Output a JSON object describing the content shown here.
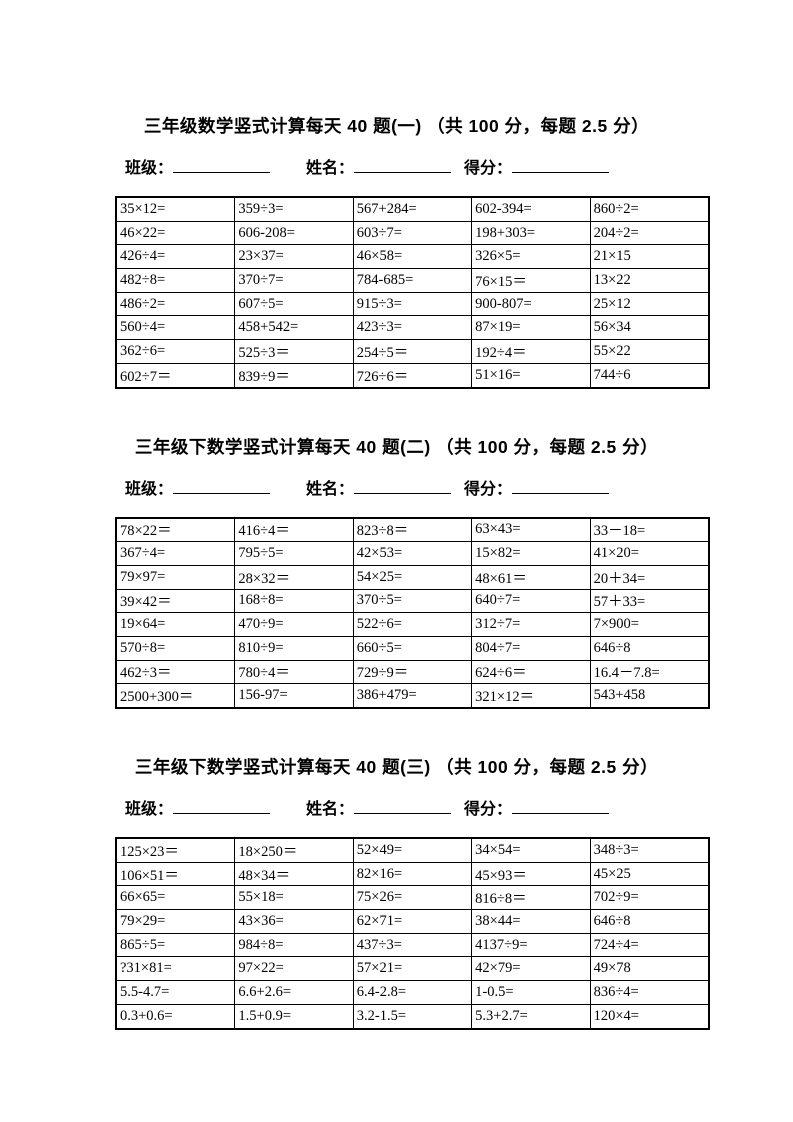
{
  "worksheets": [
    {
      "title": "三年级数学竖式计算每天 40 题(一) （共 100 分，每题 2.5 分）",
      "fields": {
        "class_label": "班级：",
        "name_label": "姓名：",
        "score_label": "得分："
      },
      "problems": [
        [
          "35×12=",
          "359÷3=",
          "567+284=",
          "602-394=",
          "860÷2="
        ],
        [
          "46×22=",
          "606-208=",
          "603÷7=",
          "198+303=",
          "204÷2="
        ],
        [
          "426÷4=",
          "23×37=",
          "46×58=",
          "326×5=",
          "21×15"
        ],
        [
          "482÷8=",
          "370÷7=",
          "784-685=",
          "76×15＝",
          "13×22"
        ],
        [
          "486÷2=",
          "607÷5=",
          "915÷3=",
          "900-807=",
          "25×12"
        ],
        [
          "560÷4=",
          "458+542=",
          "423÷3=",
          "87×19=",
          "56×34"
        ],
        [
          "362÷6=",
          "525÷3＝",
          "254÷5＝",
          "192÷4＝",
          "55×22"
        ],
        [
          "602÷7＝",
          "839÷9＝",
          "726÷6＝",
          "51×16=",
          "744÷6"
        ]
      ]
    },
    {
      "title": "三年级下数学竖式计算每天 40 题(二) （共 100 分，每题 2.5 分）",
      "fields": {
        "class_label": "班级：",
        "name_label": "姓名：",
        "score_label": "得分："
      },
      "problems": [
        [
          "78×22＝",
          "416÷4＝",
          "823÷8＝",
          "63×43=",
          "33－18="
        ],
        [
          "367÷4=",
          "795÷5=",
          "42×53=",
          "15×82=",
          "41×20="
        ],
        [
          "79×97=",
          "28×32＝",
          "54×25=",
          "48×61＝",
          "20＋34="
        ],
        [
          "39×42＝",
          "168÷8=",
          "370÷5=",
          "640÷7=",
          "57＋33="
        ],
        [
          "19×64=",
          "470÷9=",
          "522÷6=",
          "312÷7=",
          "7×900="
        ],
        [
          "570÷8=",
          "810÷9=",
          "660÷5=",
          "804÷7=",
          "646÷8"
        ],
        [
          "462÷3＝",
          "780÷4＝",
          "729÷9＝",
          "624÷6＝",
          "16.4－7.8="
        ],
        [
          "2500+300＝",
          "156-97=",
          "386+479=",
          "321×12＝",
          "543+458"
        ]
      ]
    },
    {
      "title": "三年级下数学竖式计算每天 40 题(三) （共 100 分，每题 2.5 分）",
      "fields": {
        "class_label": "班级：",
        "name_label": "姓名：",
        "score_label": "得分："
      },
      "problems": [
        [
          "125×23＝",
          "18×250＝",
          "52×49=",
          "34×54=",
          "348÷3="
        ],
        [
          "106×51＝",
          "48×34＝",
          "82×16=",
          "45×93＝",
          "45×25"
        ],
        [
          "66×65=",
          "55×18=",
          "75×26=",
          "816÷8＝",
          "702÷9="
        ],
        [
          "79×29=",
          "43×36=",
          "62×71=",
          "38×44=",
          "646÷8"
        ],
        [
          "865÷5=",
          "984÷8=",
          "437÷3=",
          "4137÷9=",
          "724÷4="
        ],
        [
          "?31×81=",
          "97×22=",
          "57×21=",
          "42×79=",
          "49×78"
        ],
        [
          "5.5-4.7=",
          "6.6+2.6=",
          "6.4-2.8=",
          "1-0.5=",
          "836÷4="
        ],
        [
          "0.3+0.6=",
          "1.5+0.9=",
          "3.2-1.5=",
          "5.3+2.7=",
          "120×4="
        ]
      ]
    }
  ]
}
